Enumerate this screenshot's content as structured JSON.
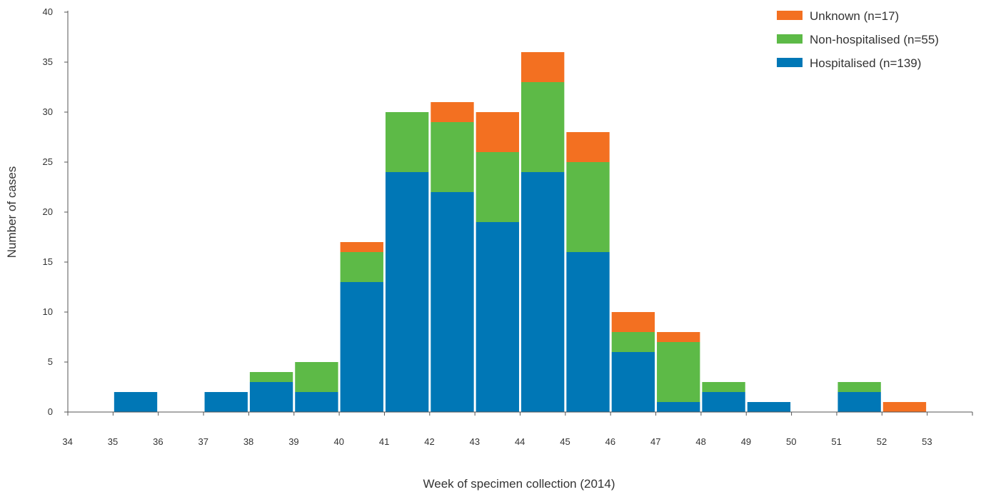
{
  "chart_data": {
    "type": "bar",
    "stacked": true,
    "categories": [
      "34",
      "35",
      "36",
      "37",
      "38",
      "39",
      "40",
      "41",
      "42",
      "43",
      "44",
      "45",
      "46",
      "47",
      "48",
      "49",
      "50",
      "51",
      "52",
      "53"
    ],
    "series": [
      {
        "name": "Hospitalised (n=139)",
        "color": "#0077b6",
        "values": [
          0,
          2,
          0,
          2,
          3,
          2,
          13,
          24,
          22,
          19,
          24,
          16,
          6,
          1,
          2,
          1,
          0,
          2,
          0,
          0
        ]
      },
      {
        "name": "Non-hospitalised (n=55)",
        "color": "#5dba47",
        "values": [
          0,
          0,
          0,
          0,
          1,
          3,
          3,
          6,
          7,
          7,
          9,
          9,
          2,
          6,
          1,
          0,
          0,
          1,
          0,
          0
        ]
      },
      {
        "name": "Unknown (n=17)",
        "color": "#f37021",
        "values": [
          0,
          0,
          0,
          0,
          0,
          0,
          1,
          0,
          2,
          4,
          3,
          3,
          2,
          1,
          0,
          0,
          0,
          0,
          1,
          0
        ]
      }
    ],
    "legend_order": [
      "Unknown (n=17)",
      "Non-hospitalised (n=55)",
      "Hospitalised (n=139)"
    ],
    "xlabel": "Week of specimen collection (2014)",
    "ylabel": "Number of cases",
    "ylim": [
      0,
      40
    ],
    "yticks": [
      "0",
      "5",
      "10",
      "15",
      "20",
      "25",
      "30",
      "35",
      "40"
    ],
    "grid": false,
    "legend_position": "top-right"
  }
}
